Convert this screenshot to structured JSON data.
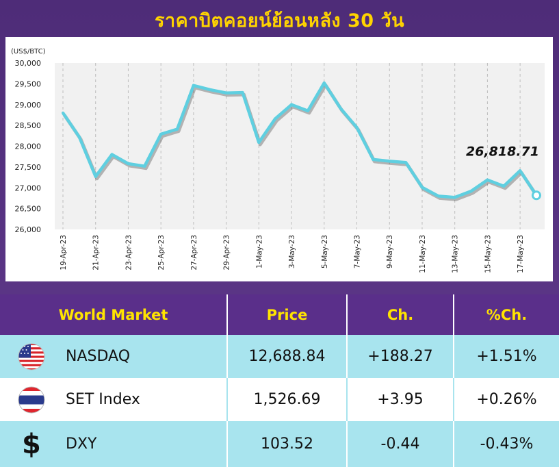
{
  "header": {
    "title": "ราคาบิตคอยน์ย้อนหลัง 30 วัน"
  },
  "colors": {
    "background": "#52307a",
    "title": "#ffd400",
    "line": "#5fcfe0",
    "table_header": "#5a2f8a",
    "table_header_text": "#ffe400",
    "row_alt": "#a8e4ee"
  },
  "chart_data": {
    "type": "line",
    "unit_label": "(US$/BTC)",
    "ylim": [
      26000,
      30000
    ],
    "yticks": [
      "26,000",
      "26,500",
      "27,000",
      "27,500",
      "28,000",
      "28,500",
      "29,000",
      "29,500",
      "30,000"
    ],
    "x_tick_labels": [
      "19-Apr-23",
      "21-Apr-23",
      "23-Apr-23",
      "25-Apr-23",
      "27-Apr-23",
      "29-Apr-23",
      "1-May-23",
      "3-May-23",
      "5-May-23",
      "7-May-23",
      "9-May-23",
      "11-May-23",
      "13-May-23",
      "15-May-23",
      "17-May-23"
    ],
    "grid": "vertical dashed",
    "series": [
      {
        "values": [
          28800,
          28220,
          27270,
          27800,
          27580,
          27520,
          28290,
          28410,
          29460,
          29360,
          29280,
          29290,
          28090,
          28660,
          29000,
          28850,
          29520,
          28910,
          28450,
          27680,
          27640,
          27610,
          27010,
          26800,
          26770,
          26920,
          27190,
          27040,
          27410,
          26818.71
        ]
      }
    ],
    "last_value_label": "26,818.71"
  },
  "table": {
    "headers": [
      "World Market",
      "Price",
      "Ch.",
      "%Ch."
    ],
    "rows": [
      {
        "icon": "us-flag-icon",
        "name": "NASDAQ",
        "price": "12,688.84",
        "change": "+188.27",
        "pct": "+1.51%"
      },
      {
        "icon": "thai-flag-icon",
        "name": "SET Index",
        "price": "1,526.69",
        "change": "+3.95",
        "pct": "+0.26%"
      },
      {
        "icon": "dollar-icon",
        "symbol": "$",
        "name": "DXY",
        "price": "103.52",
        "change": "-0.44",
        "pct": "-0.43%"
      }
    ]
  }
}
